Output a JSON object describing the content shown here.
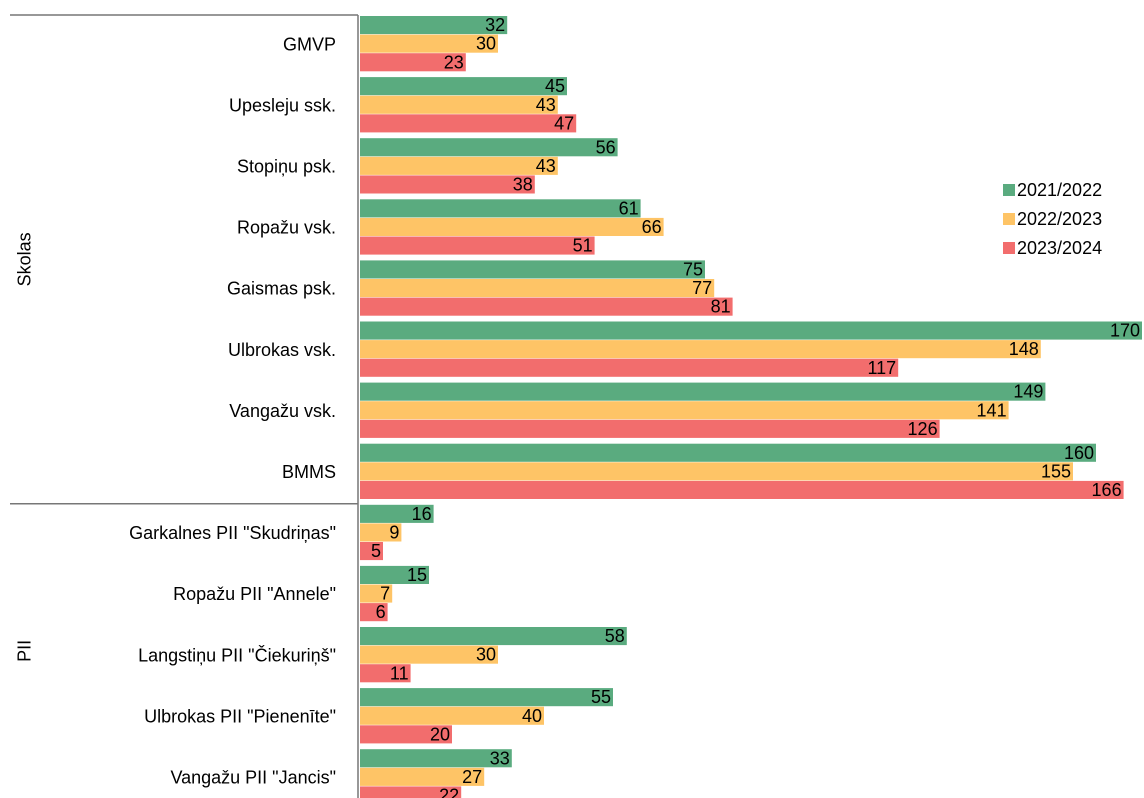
{
  "chart_data": {
    "type": "bar",
    "orientation": "horizontal",
    "groups": [
      {
        "label": "Skolas",
        "categories": [
          "GMVP",
          "Upesleju ssk.",
          "Stopiņu psk.",
          "Ropažu vsk.",
          "Gaismas psk.",
          "Ulbrokas vsk.",
          "Vangažu vsk.",
          "BMMS"
        ]
      },
      {
        "label": "PII",
        "categories": [
          "Garkalnes PII \"Skudriņas\"",
          "Ropažu PII \"Annele\"",
          "Langstiņu PII \"Čiekuriņš\"",
          "Ulbrokas PII \"Pienenīte\"",
          "Vangažu PII \"Jancis\""
        ]
      }
    ],
    "series": [
      {
        "name": "2021/2022",
        "color": "#5aab7f",
        "values": [
          32,
          45,
          56,
          61,
          75,
          170,
          149,
          160,
          16,
          15,
          58,
          55,
          33
        ]
      },
      {
        "name": "2022/2023",
        "color": "#fec466",
        "values": [
          30,
          43,
          43,
          66,
          77,
          148,
          141,
          155,
          9,
          7,
          30,
          40,
          27
        ]
      },
      {
        "name": "2023/2024",
        "color": "#f26d6d",
        "values": [
          23,
          47,
          38,
          51,
          81,
          117,
          126,
          166,
          5,
          6,
          11,
          20,
          22
        ]
      }
    ],
    "xlim": [
      0,
      170
    ],
    "legend": "right"
  }
}
